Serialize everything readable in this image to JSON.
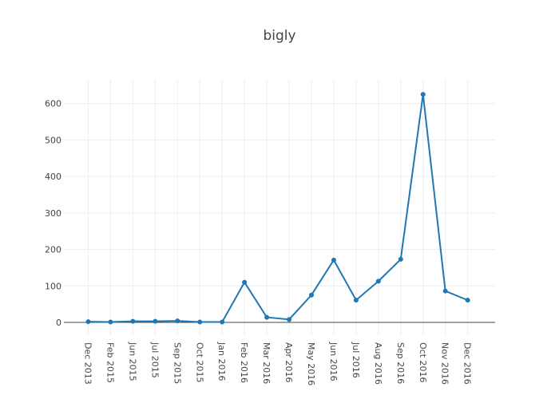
{
  "chart_data": {
    "type": "line",
    "title": "bigly",
    "xlabel": "",
    "ylabel": "",
    "categories": [
      "Dec 2013",
      "Feb 2015",
      "Jun 2015",
      "Jul 2015",
      "Sep 2015",
      "Oct 2015",
      "Jan 2016",
      "Feb 2016",
      "Mar 2016",
      "Apr 2016",
      "May 2016",
      "Jun 2016",
      "Jul 2016",
      "Aug 2016",
      "Sep 2016",
      "Oct 2016",
      "Nov 2016",
      "Dec 2016"
    ],
    "series": [
      {
        "values": [
          2,
          1,
          3,
          3,
          4,
          1,
          1,
          110,
          14,
          8,
          75,
          171,
          61,
          113,
          173,
          625,
          86,
          61
        ]
      }
    ],
    "yticks": [
      0,
      100,
      200,
      300,
      400,
      500,
      600
    ],
    "ylim": [
      -35,
      665
    ],
    "grid": true,
    "line_color": "#1f77b4"
  }
}
